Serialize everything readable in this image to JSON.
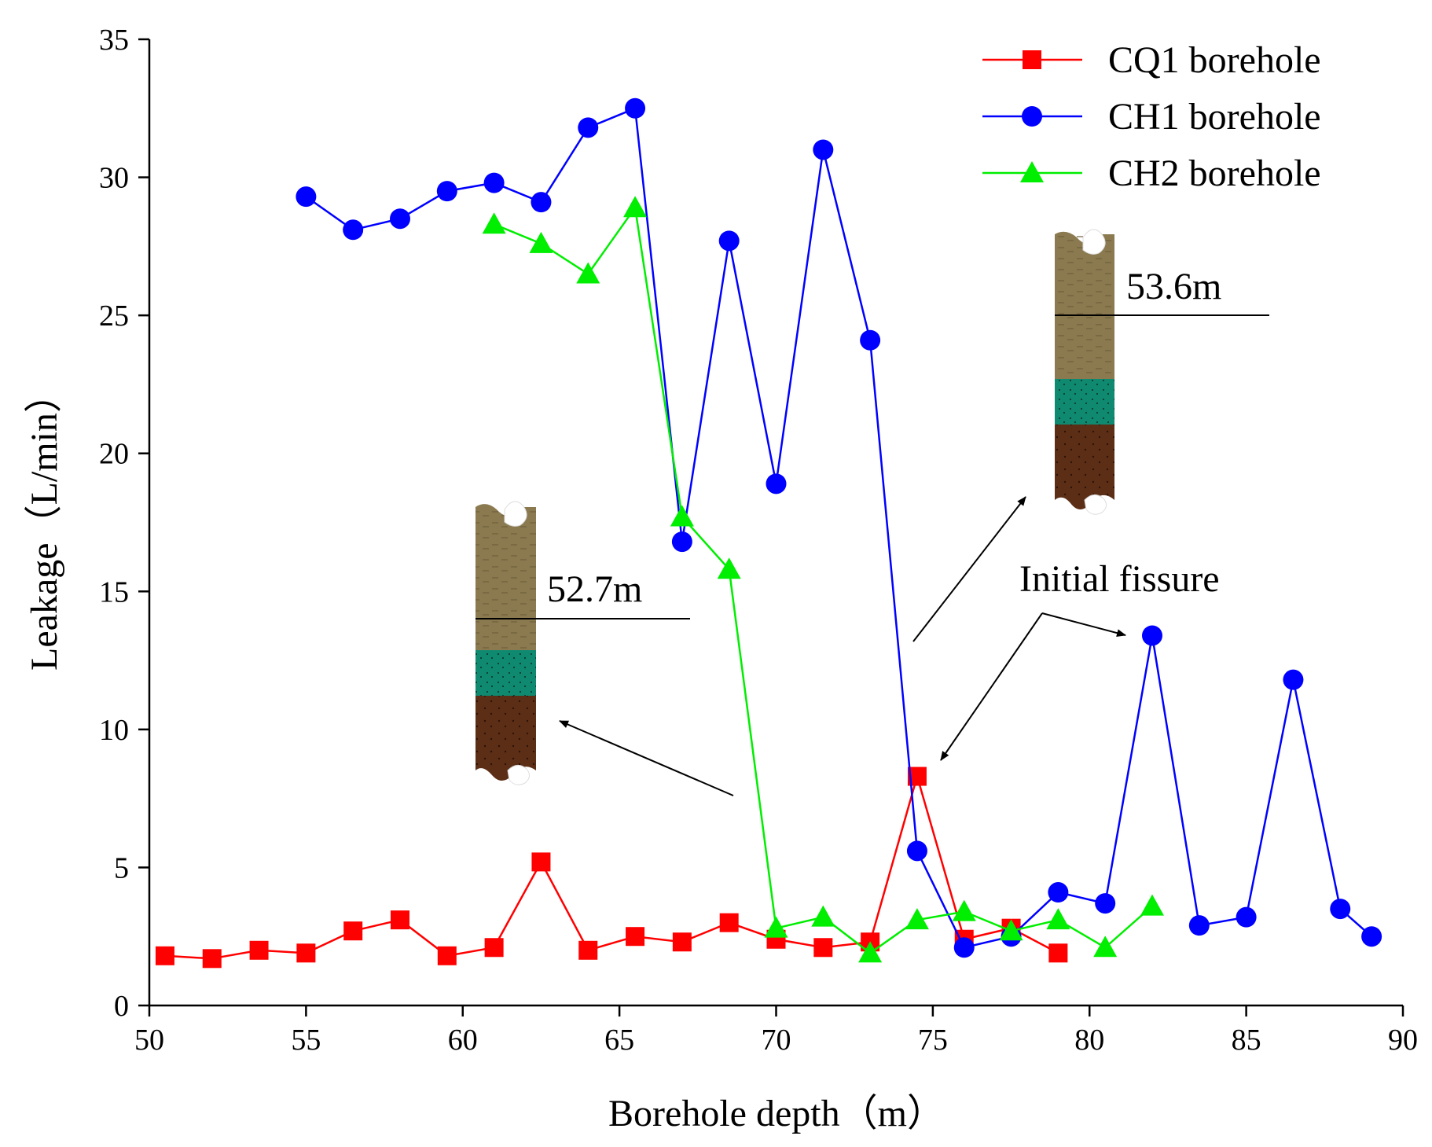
{
  "chart_data": {
    "type": "line",
    "xlabel": "Borehole depth（m）",
    "ylabel": "Leakage（L/min）",
    "xlim": [
      50,
      90
    ],
    "ylim": [
      0,
      35
    ],
    "xticks": [
      50,
      55,
      60,
      65,
      70,
      75,
      80,
      85,
      90
    ],
    "yticks": [
      0,
      5,
      10,
      15,
      20,
      25,
      30,
      35
    ],
    "grid": false,
    "legend_position": "top-right",
    "series": [
      {
        "name": "CQ1 borehole",
        "color": "#ff0000",
        "marker": "square",
        "x": [
          50.5,
          52,
          53.5,
          55,
          56.5,
          58,
          59.5,
          61,
          62.5,
          64,
          65.5,
          67,
          68.5,
          70,
          71.5,
          73,
          74.5,
          76,
          77.5,
          79
        ],
        "y": [
          1.8,
          1.7,
          2.0,
          1.9,
          2.7,
          3.1,
          1.8,
          2.1,
          5.2,
          2.0,
          2.5,
          2.3,
          3.0,
          2.4,
          2.1,
          2.3,
          8.3,
          2.4,
          2.8,
          1.9
        ]
      },
      {
        "name": "CH1 borehole",
        "color": "#0000ff",
        "marker": "circle",
        "x": [
          55,
          56.5,
          58,
          59.5,
          61,
          62.5,
          64,
          65.5,
          67,
          68.5,
          70,
          71.5,
          73,
          74.5,
          76,
          77.5,
          79,
          80.5,
          82,
          83.5,
          85,
          86.5,
          88,
          89
        ],
        "y": [
          29.3,
          28.1,
          28.5,
          29.5,
          29.8,
          29.1,
          31.8,
          32.5,
          16.8,
          27.7,
          18.9,
          31.0,
          24.1,
          5.6,
          2.1,
          2.5,
          4.1,
          3.7,
          13.4,
          2.9,
          3.2,
          11.8,
          3.5,
          2.5
        ]
      },
      {
        "name": "CH2 borehole",
        "color": "#00ee00",
        "marker": "triangle",
        "x": [
          61,
          62.5,
          64,
          65.5,
          67,
          68.5,
          70,
          71.5,
          73,
          74.5,
          76,
          77.5,
          79,
          80.5,
          82
        ],
        "y": [
          28.3,
          27.6,
          26.5,
          28.9,
          17.7,
          15.8,
          2.8,
          3.2,
          1.9,
          3.1,
          3.4,
          2.7,
          3.1,
          2.1,
          3.6
        ]
      }
    ],
    "annotations": [
      {
        "text": "53.6m",
        "target": "upper borehole column inset"
      },
      {
        "text": "52.7m",
        "target": "lower borehole column inset"
      },
      {
        "text": "Initial fissure",
        "points_to": [
          "CH1 borehole at 82 m",
          "CQ1 borehole at 74.5 m"
        ]
      }
    ],
    "inset_colors": {
      "sandstone": "#8b7a50",
      "mudstone": "#0f8a70",
      "coal": "#5c2e16"
    }
  }
}
